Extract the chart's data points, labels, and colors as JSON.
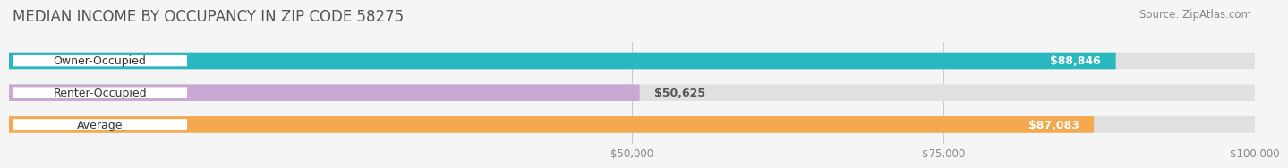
{
  "title": "MEDIAN INCOME BY OCCUPANCY IN ZIP CODE 58275",
  "source": "Source: ZipAtlas.com",
  "categories": [
    "Owner-Occupied",
    "Renter-Occupied",
    "Average"
  ],
  "values": [
    88846,
    50625,
    87083
  ],
  "bar_colors": [
    "#2ab8c0",
    "#c9a8d4",
    "#f5a94e"
  ],
  "bar_labels": [
    "$88,846",
    "$50,625",
    "$87,083"
  ],
  "xlim": [
    0,
    100000
  ],
  "xticks": [
    50000,
    75000,
    100000
  ],
  "xticklabels": [
    "$50,000",
    "$75,000",
    "$100,000"
  ],
  "background_color": "#f5f5f5",
  "bar_background_color": "#e0e0e0",
  "title_fontsize": 12,
  "source_fontsize": 8.5,
  "label_fontsize": 9,
  "bar_height": 0.52,
  "bar_label_color_inside": "#ffffff",
  "bar_label_color_outside": "#555555",
  "category_label_fontsize": 9,
  "value_threshold": 60000
}
